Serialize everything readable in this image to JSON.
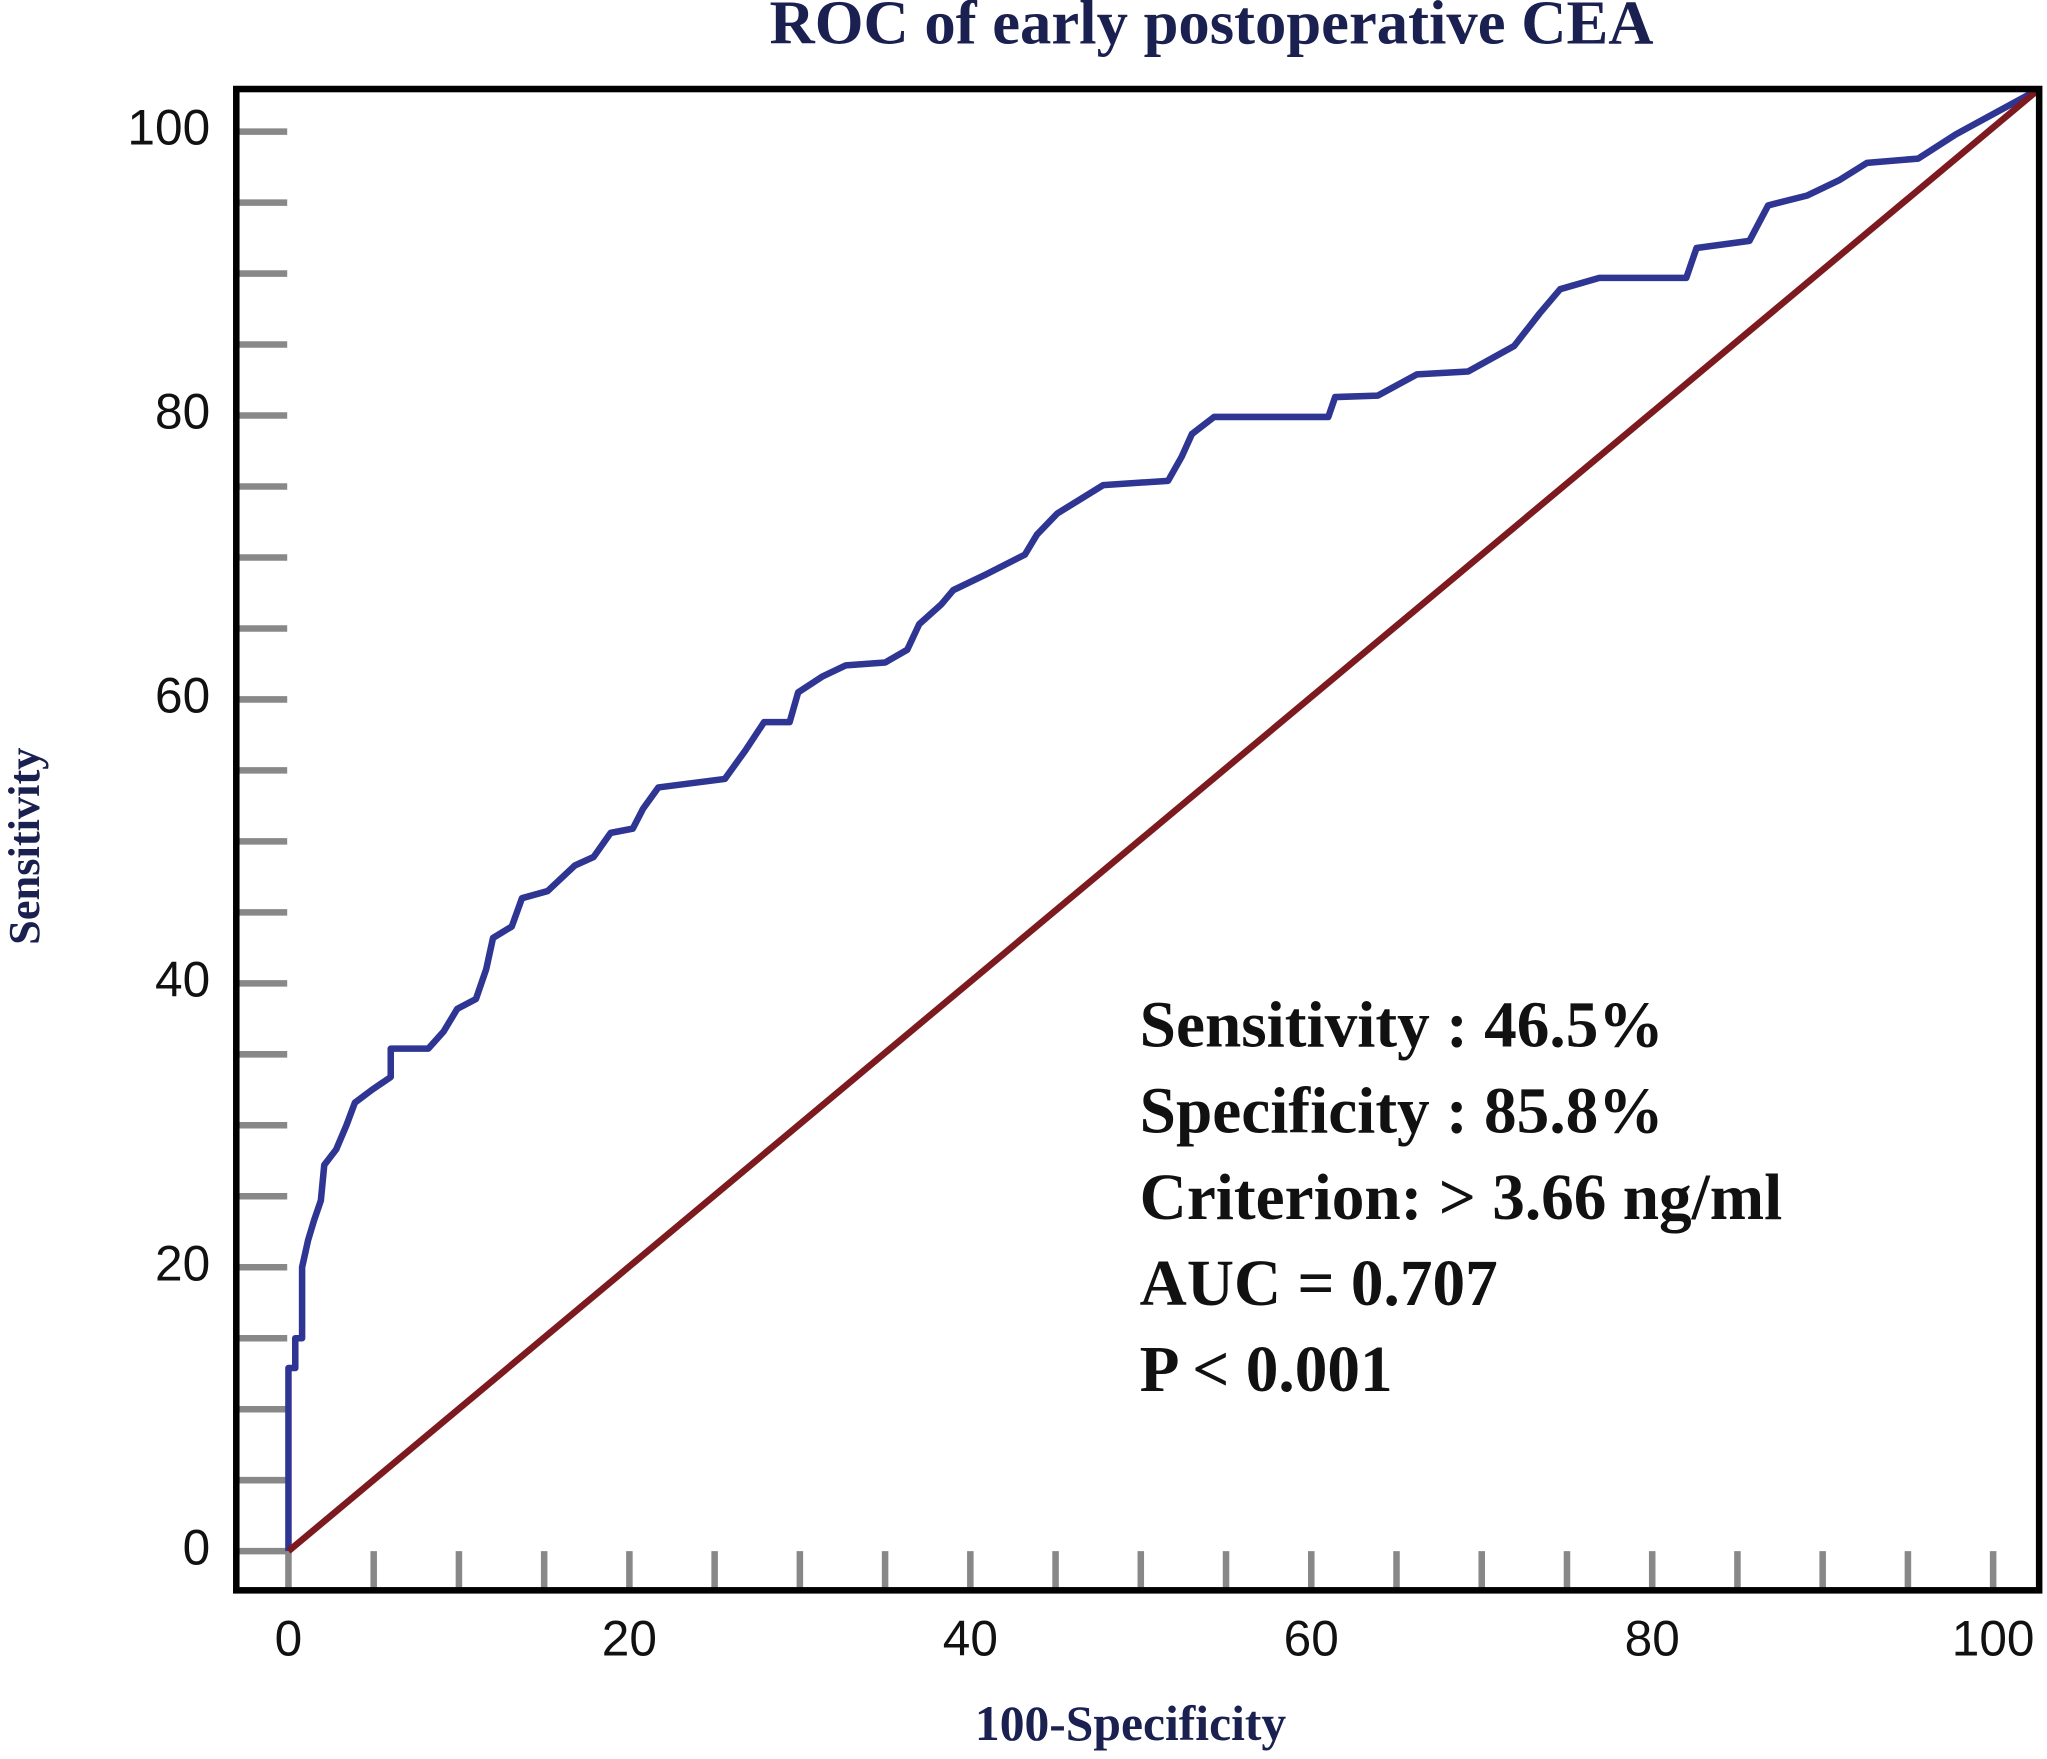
{
  "chart_data": {
    "type": "line",
    "title": "ROC of early postoperative CEA",
    "x_label": "100-Specificity",
    "y_label": "Sensitivity",
    "xlim": [
      -3.06,
      102.7
    ],
    "ylim": [
      -2.76,
      103
    ],
    "xticks": [
      0,
      20,
      40,
      60,
      80,
      100
    ],
    "yticks": [
      0,
      20,
      40,
      60,
      80,
      100
    ],
    "xminorticks": [
      5,
      10,
      15,
      25,
      30,
      35,
      45,
      50,
      55,
      65,
      70,
      75,
      85,
      90,
      95
    ],
    "yminorticks": [
      5,
      10,
      15,
      25,
      30,
      35,
      45,
      50,
      55,
      65,
      70,
      75,
      85,
      90,
      95
    ],
    "series": [
      {
        "color": "#2e3592",
        "x": [
          0,
          0,
          0.4,
          0.4,
          0.8,
          0.8,
          1.15,
          1.5,
          1.9,
          2.1,
          2.8,
          3.4,
          3.9,
          4.9,
          6,
          6,
          8.2,
          9.1,
          9.9,
          11,
          11.6,
          12,
          13.1,
          13.7,
          15.2,
          16.8,
          17.9,
          18.9,
          20.2,
          20.8,
          21.7,
          25.6,
          26.8,
          27.9,
          29.4,
          29.9,
          31.3,
          32.7,
          35,
          36.3,
          37,
          38.3,
          39,
          40.9,
          43.2,
          43.9,
          45.1,
          47.8,
          51.6,
          52.4,
          53,
          54.3,
          61,
          61.4,
          63.9,
          66.2,
          69.2,
          71.9,
          73.4,
          74.6,
          76.9,
          82,
          82.6,
          85.7,
          86.8,
          89.1,
          91,
          92.6,
          95.6,
          97.8,
          102.7
        ],
        "values": [
          0,
          12.9,
          12.9,
          15,
          15,
          20,
          21.9,
          23.3,
          24.7,
          27.2,
          28.3,
          30,
          31.6,
          32.5,
          33.4,
          35.4,
          35.4,
          36.6,
          38.2,
          38.9,
          41,
          43.2,
          44,
          46,
          46.5,
          48.3,
          48.9,
          50.6,
          50.9,
          52.3,
          53.8,
          54.4,
          56.4,
          58.4,
          58.4,
          60.5,
          61.6,
          62.4,
          62.6,
          63.5,
          65.3,
          66.7,
          67.7,
          68.8,
          70.2,
          71.6,
          73.1,
          75.1,
          75.4,
          77.1,
          78.7,
          79.9,
          79.9,
          81.3,
          81.4,
          82.9,
          83.1,
          84.9,
          87.2,
          88.9,
          89.7,
          89.7,
          91.8,
          92.3,
          94.8,
          95.5,
          96.6,
          97.8,
          98.1,
          99.8,
          103
        ]
      },
      {
        "color": "#7d1a1f",
        "x": [
          0,
          102.7
        ],
        "values": [
          0,
          103
        ]
      }
    ],
    "annotations": [
      "Sensitivity : 46.5%",
      "Specificity : 85.8%",
      "Criterion: > 3.66 ng/ml",
      "AUC = 0.707",
      "P < 0.001"
    ]
  }
}
